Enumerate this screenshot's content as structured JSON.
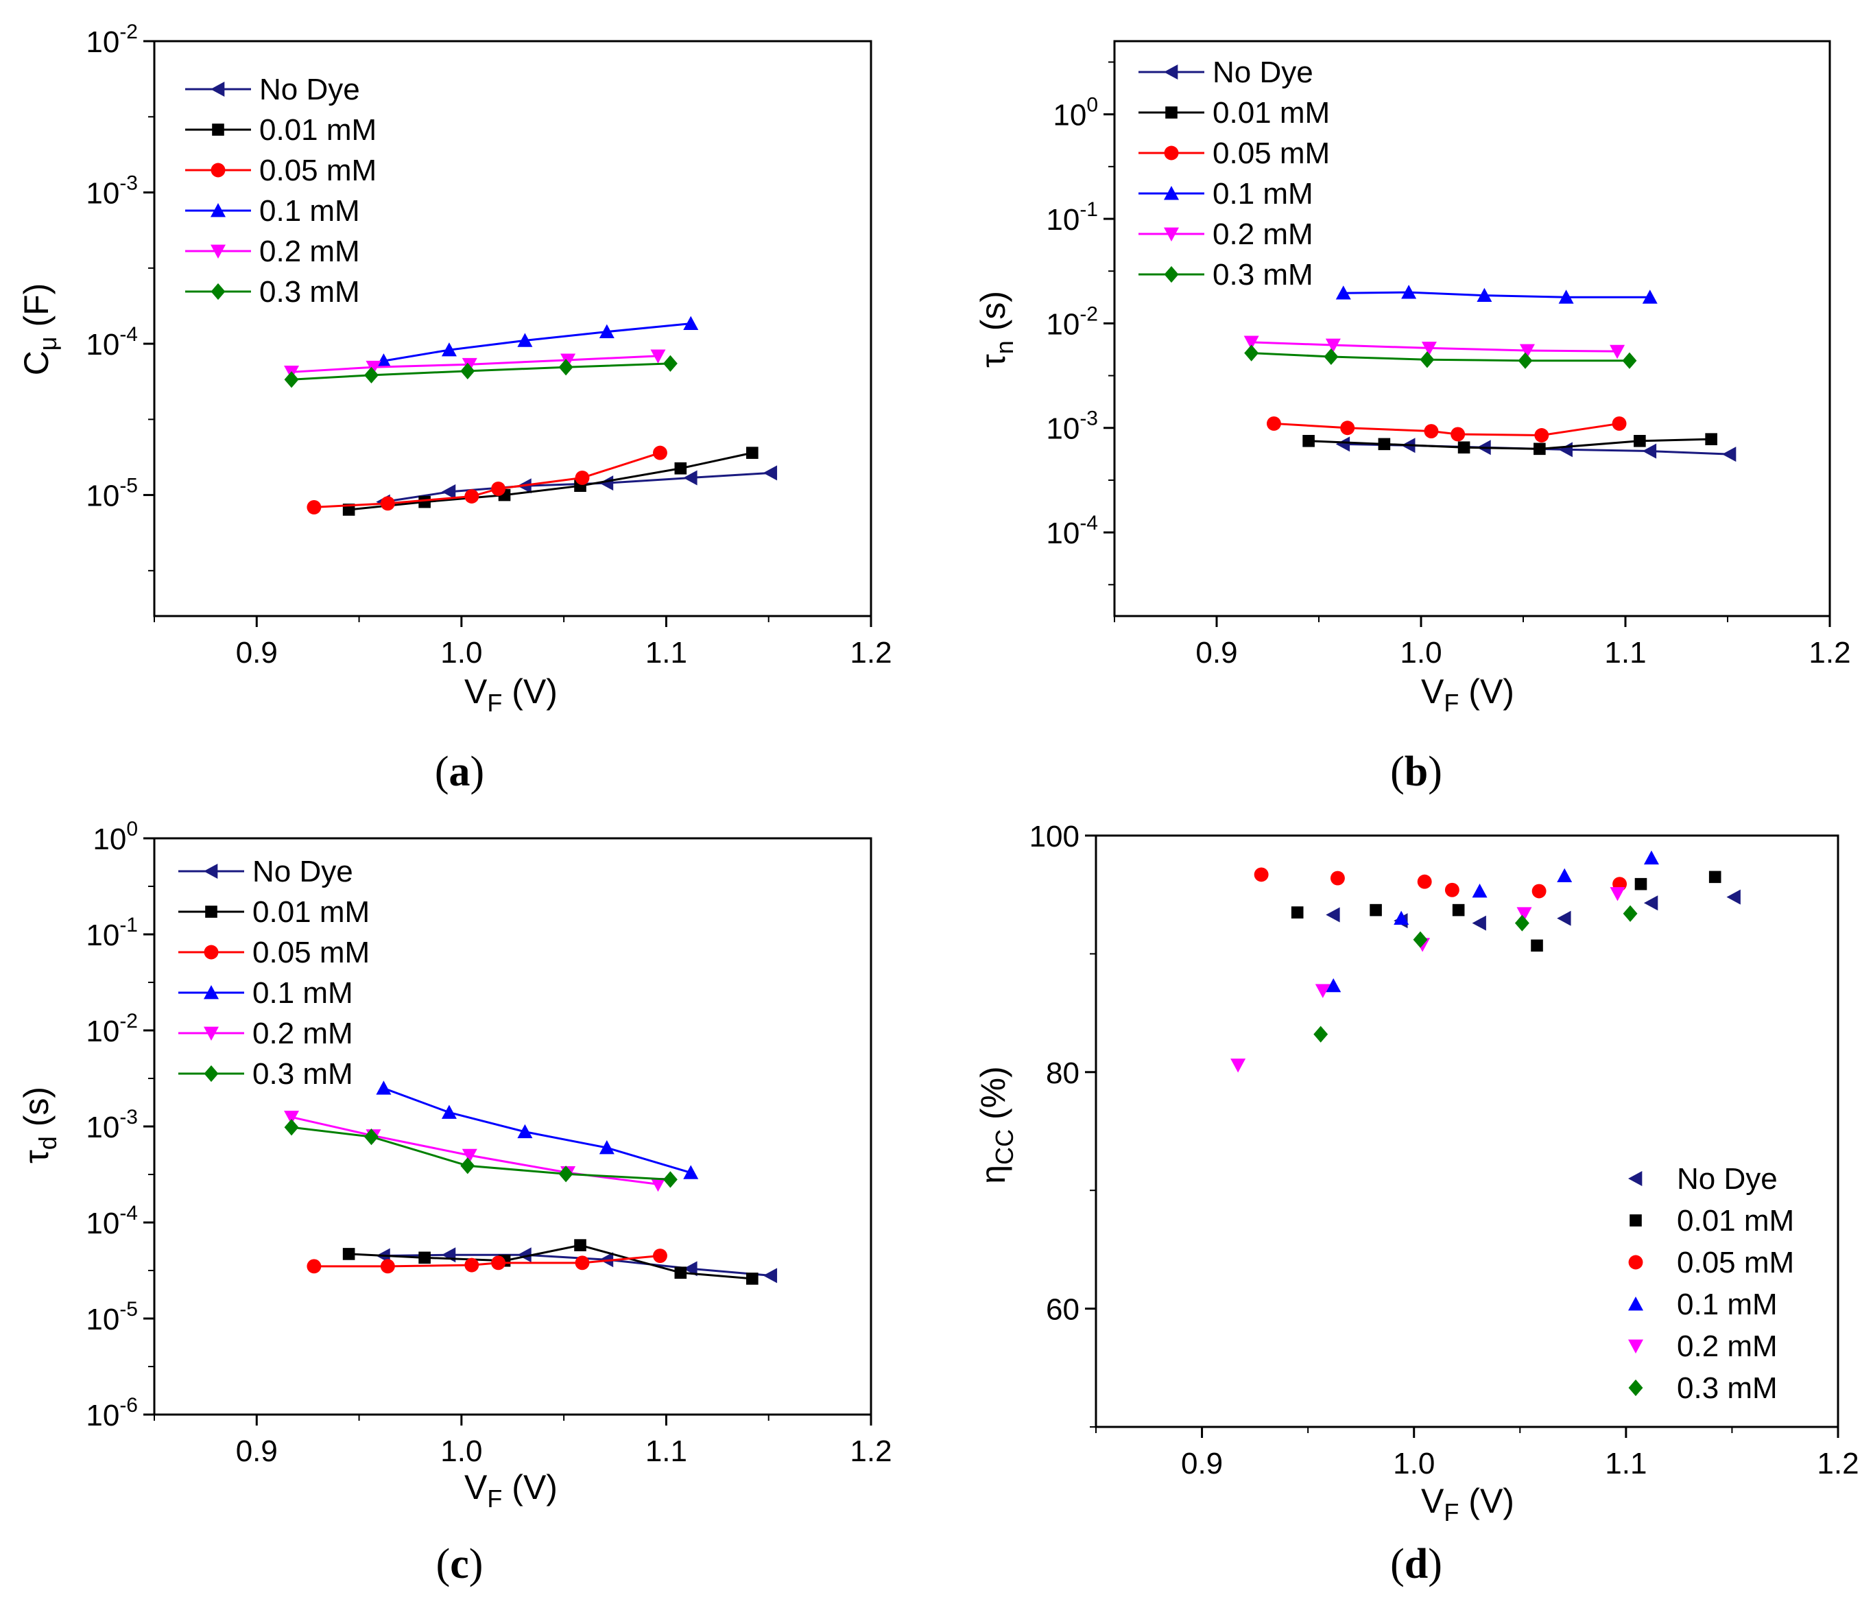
{
  "chart_data": [
    {
      "id": "a",
      "type": "line",
      "caption_letter": "a",
      "ylabel": {
        "main": "C",
        "sub": "μ",
        "tail": " (F)"
      },
      "xlabel": {
        "main": "V",
        "sub": "F",
        "tail": " (V)"
      },
      "xlim": [
        0.85,
        1.2
      ],
      "xticks": [
        "0.9",
        "1.0",
        "1.1",
        "1.2"
      ],
      "ylog": [
        -5.8,
        -2
      ],
      "ytick_exps": [
        "-2",
        "-3",
        "-4",
        "-5"
      ],
      "legend_style": "line",
      "series": [
        {
          "name": "No Dye",
          "color": "#1a1a80",
          "marker": "tri-left",
          "x": [
            0.962,
            0.994,
            1.031,
            1.071,
            1.112,
            1.151
          ],
          "y": [
            9e-06,
            1.05e-05,
            1.15e-05,
            1.2e-05,
            1.3e-05,
            1.4e-05
          ]
        },
        {
          "name": "0.01 mM",
          "color": "#000000",
          "marker": "square",
          "x": [
            0.945,
            0.982,
            1.021,
            1.058,
            1.107,
            1.142
          ],
          "y": [
            8e-06,
            9e-06,
            1e-05,
            1.15e-05,
            1.5e-05,
            1.9e-05
          ]
        },
        {
          "name": "0.05 mM",
          "color": "#ff0000",
          "marker": "circle",
          "x": [
            0.928,
            0.964,
            1.005,
            1.018,
            1.059,
            1.097
          ],
          "y": [
            8.3e-06,
            8.8e-06,
            9.8e-06,
            1.1e-05,
            1.3e-05,
            1.9e-05
          ]
        },
        {
          "name": "0.1 mM",
          "color": "#0000ff",
          "marker": "tri-up",
          "x": [
            0.962,
            0.994,
            1.031,
            1.071,
            1.112
          ],
          "y": [
            7.7e-05,
            9.1e-05,
            0.000105,
            0.00012,
            0.000136
          ]
        },
        {
          "name": "0.2 mM",
          "color": "#ff00ff",
          "marker": "tri-down",
          "x": [
            0.917,
            0.957,
            1.004,
            1.052,
            1.096
          ],
          "y": [
            6.5e-05,
            7e-05,
            7.3e-05,
            7.8e-05,
            8.3e-05
          ]
        },
        {
          "name": "0.3 mM",
          "color": "#008000",
          "marker": "diamond",
          "x": [
            0.917,
            0.956,
            1.003,
            1.051,
            1.102
          ],
          "y": [
            5.8e-05,
            6.2e-05,
            6.6e-05,
            7e-05,
            7.4e-05
          ]
        }
      ]
    },
    {
      "id": "b",
      "type": "line",
      "caption_letter": "b",
      "ylabel": {
        "main": "τ",
        "sub": "n",
        "tail": " (s)"
      },
      "xlabel": {
        "main": "V",
        "sub": "F",
        "tail": " (V)"
      },
      "xlim": [
        0.85,
        1.2
      ],
      "xticks": [
        "0.9",
        "1.0",
        "1.1",
        "1.2"
      ],
      "ylog": [
        -4.8,
        0.7
      ],
      "ytick_exps": [
        "0",
        "-1",
        "-2",
        "-3",
        "-4"
      ],
      "legend_style": "line",
      "series": [
        {
          "name": "No Dye",
          "color": "#1a1a80",
          "marker": "tri-left",
          "x": [
            0.962,
            0.994,
            1.031,
            1.071,
            1.112,
            1.151
          ],
          "y": [
            0.0007,
            0.00068,
            0.00065,
            0.00062,
            0.0006,
            0.00056
          ]
        },
        {
          "name": "0.01 mM",
          "color": "#000000",
          "marker": "square",
          "x": [
            0.945,
            0.982,
            1.021,
            1.058,
            1.107,
            1.142
          ],
          "y": [
            0.00075,
            0.0007,
            0.00065,
            0.00063,
            0.00075,
            0.00078
          ]
        },
        {
          "name": "0.05 mM",
          "color": "#ff0000",
          "marker": "circle",
          "x": [
            0.928,
            0.964,
            1.005,
            1.018,
            1.059,
            1.097
          ],
          "y": [
            0.0011,
            0.001,
            0.00093,
            0.00087,
            0.00085,
            0.0011
          ]
        },
        {
          "name": "0.1 mM",
          "color": "#0000ff",
          "marker": "tri-up",
          "x": [
            0.962,
            0.994,
            1.031,
            1.071,
            1.112
          ],
          "y": [
            0.0195,
            0.0198,
            0.0185,
            0.0178,
            0.0178
          ]
        },
        {
          "name": "0.2 mM",
          "color": "#ff00ff",
          "marker": "tri-down",
          "x": [
            0.917,
            0.957,
            1.004,
            1.052,
            1.096
          ],
          "y": [
            0.0066,
            0.0062,
            0.0058,
            0.0055,
            0.0054
          ]
        },
        {
          "name": "0.3 mM",
          "color": "#008000",
          "marker": "diamond",
          "x": [
            0.917,
            0.956,
            1.003,
            1.051,
            1.102
          ],
          "y": [
            0.0052,
            0.0048,
            0.0045,
            0.0044,
            0.0044
          ]
        }
      ]
    },
    {
      "id": "c",
      "type": "line",
      "caption_letter": "c",
      "ylabel": {
        "main": "τ",
        "sub": "d",
        "tail": " (s)"
      },
      "xlabel": {
        "main": "V",
        "sub": "F",
        "tail": " (V)"
      },
      "xlim": [
        0.85,
        1.2
      ],
      "xticks": [
        "0.9",
        "1.0",
        "1.1",
        "1.2"
      ],
      "ylog": [
        -6,
        0
      ],
      "ytick_exps": [
        "0",
        "-1",
        "-2",
        "-3",
        "-4",
        "-5",
        "-6"
      ],
      "legend_style": "line",
      "series": [
        {
          "name": "No Dye",
          "color": "#1a1a80",
          "marker": "tri-left",
          "x": [
            0.962,
            0.994,
            1.031,
            1.071,
            1.112,
            1.151
          ],
          "y": [
            4.5e-05,
            4.6e-05,
            4.6e-05,
            4.1e-05,
            3.3e-05,
            2.8e-05
          ]
        },
        {
          "name": "0.01 mM",
          "color": "#000000",
          "marker": "square",
          "x": [
            0.945,
            0.982,
            1.021,
            1.058,
            1.107,
            1.142
          ],
          "y": [
            4.7e-05,
            4.3e-05,
            4e-05,
            5.8e-05,
            3e-05,
            2.6e-05
          ]
        },
        {
          "name": "0.05 mM",
          "color": "#ff0000",
          "marker": "circle",
          "x": [
            0.928,
            0.964,
            1.005,
            1.018,
            1.059,
            1.097
          ],
          "y": [
            3.5e-05,
            3.5e-05,
            3.6e-05,
            3.8e-05,
            3.8e-05,
            4.5e-05
          ]
        },
        {
          "name": "0.1 mM",
          "color": "#0000ff",
          "marker": "tri-up",
          "x": [
            0.962,
            0.994,
            1.031,
            1.071,
            1.112
          ],
          "y": [
            0.0025,
            0.0014,
            0.00088,
            0.0006,
            0.00033
          ]
        },
        {
          "name": "0.2 mM",
          "color": "#ff00ff",
          "marker": "tri-down",
          "x": [
            0.917,
            0.957,
            1.004,
            1.052,
            1.096
          ],
          "y": [
            0.00125,
            0.0008,
            0.0005,
            0.00033,
            0.00025
          ]
        },
        {
          "name": "0.3 mM",
          "color": "#008000",
          "marker": "diamond",
          "x": [
            0.917,
            0.956,
            1.003,
            1.051,
            1.102
          ],
          "y": [
            0.00098,
            0.00078,
            0.00039,
            0.00032,
            0.00028
          ]
        }
      ]
    },
    {
      "id": "d",
      "type": "scatter",
      "caption_letter": "d",
      "ylabel": {
        "main": "η",
        "sub": "CC",
        "tail": " (%)"
      },
      "xlabel": {
        "main": "V",
        "sub": "F",
        "tail": " (V)"
      },
      "xlim": [
        0.85,
        1.2
      ],
      "xticks": [
        "0.9",
        "1.0",
        "1.1",
        "1.2"
      ],
      "ylim": [
        50,
        100
      ],
      "yticks": [
        "100",
        "80",
        "60"
      ],
      "legend_style": "marker",
      "series": [
        {
          "name": "No Dye",
          "color": "#1a1a80",
          "marker": "tri-left",
          "x": [
            0.962,
            0.994,
            1.031,
            1.071,
            1.112,
            1.151
          ],
          "y": [
            93.3,
            92.8,
            92.6,
            93.0,
            94.3,
            94.8
          ]
        },
        {
          "name": "0.01 mM",
          "color": "#000000",
          "marker": "square",
          "x": [
            0.945,
            0.982,
            1.021,
            1.058,
            1.107,
            1.142
          ],
          "y": [
            93.5,
            93.7,
            93.7,
            90.7,
            95.9,
            96.5
          ]
        },
        {
          "name": "0.05 mM",
          "color": "#ff0000",
          "marker": "circle",
          "x": [
            0.928,
            0.964,
            1.005,
            1.018,
            1.059,
            1.097
          ],
          "y": [
            96.7,
            96.4,
            96.1,
            95.4,
            95.3,
            95.9
          ]
        },
        {
          "name": "0.1 mM",
          "color": "#0000ff",
          "marker": "tri-up",
          "x": [
            0.962,
            0.994,
            1.031,
            1.071,
            1.112
          ],
          "y": [
            87.3,
            93.0,
            95.3,
            96.6,
            98.1
          ]
        },
        {
          "name": "0.2 mM",
          "color": "#ff00ff",
          "marker": "tri-down",
          "x": [
            0.917,
            0.957,
            1.004,
            1.052,
            1.096
          ],
          "y": [
            80.6,
            86.9,
            90.8,
            93.4,
            95.1
          ]
        },
        {
          "name": "0.3 mM",
          "color": "#008000",
          "marker": "diamond",
          "x": [
            0.917,
            0.956,
            1.003,
            1.051,
            1.102
          ],
          "y": [
            null,
            83.2,
            91.2,
            92.6,
            93.4
          ]
        }
      ]
    }
  ]
}
